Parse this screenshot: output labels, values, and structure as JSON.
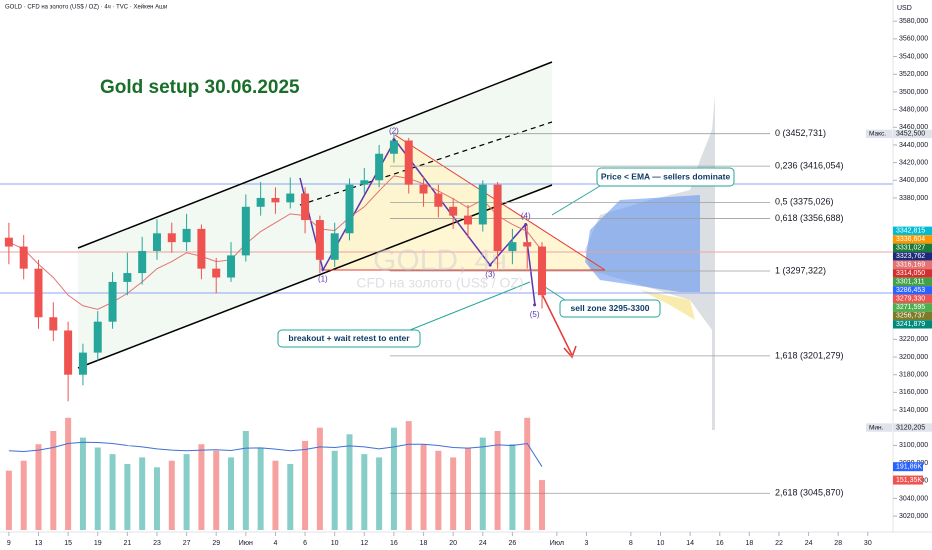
{
  "chart_data": {
    "type": "candlestick",
    "header": "GOLD · CFD на золото (US$ / OZ) · 4ч · TVC · Хейкен Аши",
    "title": "Gold setup 30.06.2025",
    "currency": "USD",
    "watermark": "GOLD, 4ч",
    "watermark_sub": "CFD на золото (US$ / OZ)",
    "up_color": "#26a69a",
    "down_color": "#ef5350",
    "xlim": [
      -0.6,
      59.7
    ],
    "ylim": [
      3002,
      3604
    ],
    "xticks": [
      {
        "value": 0,
        "label": "9"
      },
      {
        "value": 2,
        "label": "13"
      },
      {
        "value": 4,
        "label": "15"
      },
      {
        "value": 6,
        "label": "19"
      },
      {
        "value": 8,
        "label": "21"
      },
      {
        "value": 10,
        "label": "23"
      },
      {
        "value": 12,
        "label": "27"
      },
      {
        "value": 14,
        "label": "29"
      },
      {
        "value": 16,
        "label": "Июн"
      },
      {
        "value": 18,
        "label": "4"
      },
      {
        "value": 20,
        "label": "6"
      },
      {
        "value": 22,
        "label": "10"
      },
      {
        "value": 24,
        "label": "12"
      },
      {
        "value": 26,
        "label": "16"
      },
      {
        "value": 28,
        "label": "18"
      },
      {
        "value": 30,
        "label": "20"
      },
      {
        "value": 32,
        "label": "24"
      },
      {
        "value": 34,
        "label": "26"
      },
      {
        "value": 37,
        "label": "Июл"
      },
      {
        "value": 39,
        "label": "3"
      },
      {
        "value": 42,
        "label": "8"
      },
      {
        "value": 44,
        "label": "10"
      },
      {
        "value": 46,
        "label": "14"
      },
      {
        "value": 48,
        "label": "16"
      },
      {
        "value": 50,
        "label": "18"
      },
      {
        "value": 52,
        "label": "22"
      },
      {
        "value": 54,
        "label": "24"
      },
      {
        "value": 56,
        "label": "28"
      },
      {
        "value": 58,
        "label": "30"
      }
    ],
    "yticks": [
      {
        "value": 3020,
        "label": "3020,000"
      },
      {
        "value": 3040,
        "label": "3040,000"
      },
      {
        "value": 3060,
        "label": "3060,000"
      },
      {
        "value": 3080,
        "label": "3080,000"
      },
      {
        "value": 3100,
        "label": "3100,000"
      },
      {
        "value": 3140,
        "label": "3140,000"
      },
      {
        "value": 3160,
        "label": "3160,000"
      },
      {
        "value": 3180,
        "label": "3180,000"
      },
      {
        "value": 3200,
        "label": "3200,000"
      },
      {
        "value": 3220,
        "label": "3220,000"
      },
      {
        "value": 3380,
        "label": "3380,000"
      },
      {
        "value": 3400,
        "label": "3400,000"
      },
      {
        "value": 3420,
        "label": "3420,000"
      },
      {
        "value": 3440,
        "label": "3440,000"
      },
      {
        "value": 3460,
        "label": "3460,000"
      },
      {
        "value": 3480,
        "label": "3480,000"
      },
      {
        "value": 3500,
        "label": "3500,000"
      },
      {
        "value": 3520,
        "label": "3520,000"
      },
      {
        "value": 3540,
        "label": "3540,000"
      },
      {
        "value": 3560,
        "label": "3560,000"
      },
      {
        "value": 3580,
        "label": "3580,000"
      }
    ],
    "x": [
      0,
      1,
      2,
      3,
      4,
      5,
      6,
      7,
      8,
      9,
      10,
      11,
      12,
      13,
      14,
      15,
      16,
      17,
      18,
      19,
      20,
      21,
      22,
      23,
      24,
      25,
      26,
      27,
      28,
      29,
      30,
      31,
      32,
      33,
      34,
      35,
      36
    ],
    "open": [
      3335,
      3325,
      3300,
      3245,
      3230,
      3180,
      3205,
      3240,
      3285,
      3295,
      3320,
      3340,
      3330,
      3345,
      3300,
      3290,
      3315,
      3370,
      3380,
      3375,
      3385,
      3355,
      3310,
      3340,
      3395,
      3400,
      3430,
      3445,
      3395,
      3385,
      3370,
      3360,
      3350,
      3395,
      3320,
      3330,
      3325
    ],
    "high": [
      3352,
      3338,
      3310,
      3262,
      3240,
      3215,
      3252,
      3296,
      3318,
      3336,
      3356,
      3352,
      3362,
      3350,
      3312,
      3330,
      3384,
      3398,
      3392,
      3403,
      3392,
      3360,
      3352,
      3402,
      3414,
      3440,
      3452,
      3448,
      3405,
      3395,
      3380,
      3372,
      3400,
      3398,
      3345,
      3350,
      3330
    ],
    "low": [
      3305,
      3288,
      3232,
      3218,
      3150,
      3168,
      3196,
      3232,
      3270,
      3282,
      3310,
      3318,
      3320,
      3288,
      3272,
      3285,
      3308,
      3360,
      3362,
      3368,
      3340,
      3295,
      3302,
      3332,
      3385,
      3392,
      3420,
      3385,
      3370,
      3358,
      3345,
      3335,
      3342,
      3300,
      3305,
      3300,
      3255
    ],
    "close": [
      3325,
      3300,
      3245,
      3230,
      3180,
      3205,
      3240,
      3285,
      3295,
      3320,
      3340,
      3330,
      3345,
      3300,
      3290,
      3315,
      3370,
      3380,
      3375,
      3385,
      3355,
      3310,
      3340,
      3395,
      3400,
      3430,
      3445,
      3395,
      3385,
      3370,
      3360,
      3350,
      3395,
      3320,
      3330,
      3325,
      3270
    ],
    "ema": {
      "color": "#e57373",
      "values": [
        3330,
        3322,
        3305,
        3290,
        3270,
        3258,
        3254,
        3262,
        3272,
        3285,
        3300,
        3308,
        3318,
        3314,
        3308,
        3310,
        3328,
        3342,
        3352,
        3362,
        3360,
        3345,
        3343,
        3358,
        3370,
        3388,
        3405,
        3402,
        3396,
        3388,
        3379,
        3369,
        3378,
        3360,
        3350,
        3342,
        3320
      ]
    },
    "volume": {
      "values": [
        180,
        210,
        260,
        300,
        340,
        280,
        250,
        230,
        200,
        220,
        190,
        210,
        230,
        260,
        240,
        220,
        300,
        250,
        210,
        200,
        270,
        310,
        240,
        290,
        230,
        220,
        310,
        330,
        260,
        240,
        220,
        250,
        280,
        300,
        260,
        340,
        151.35
      ]
    },
    "volume_ma": {
      "color": "#3f6fd8",
      "values": [
        240,
        238,
        242,
        250,
        262,
        266,
        265,
        262,
        256,
        252,
        246,
        242,
        240,
        242,
        243,
        241,
        248,
        249,
        245,
        240,
        244,
        252,
        250,
        255,
        252,
        246,
        252,
        260,
        260,
        256,
        250,
        248,
        252,
        258,
        256,
        262,
        191.86
      ]
    },
    "volume_tags": [
      {
        "value": 191.86,
        "label": "191,86K",
        "color": "#2962ff"
      },
      {
        "value": 151.35,
        "label": "151,35K",
        "color": "#ef5350"
      }
    ],
    "price_tags": [
      {
        "value": 3452.5,
        "label": "3452,500",
        "tag": "Макс.",
        "color": "#e0e3eb"
      },
      {
        "value": 3342.815,
        "label": "3342,815",
        "color": "#00bcd4"
      },
      {
        "value": 3336.604,
        "label": "3336,604",
        "color": "#ff9800"
      },
      {
        "value": 3331.027,
        "label": "3331,027",
        "color": "#1b7a3a"
      },
      {
        "value": 3323.762,
        "label": "3323,762",
        "color": "#1e2a78"
      },
      {
        "value": 3316.169,
        "label": "3316,169",
        "color": "#e57373"
      },
      {
        "value": 3314.05,
        "label": "3314,050",
        "color": "#d32f2f"
      },
      {
        "value": 3301.311,
        "label": "3301,311",
        "color": "#43a047"
      },
      {
        "value": 3286.453,
        "label": "3286,453",
        "color": "#2962ff"
      },
      {
        "value": 3279.33,
        "label": "3279,330",
        "color": "#ef5350"
      },
      {
        "value": 3271.595,
        "label": "3271,595",
        "color": "#4caf50"
      },
      {
        "value": 3256.737,
        "label": "3256,737",
        "color": "#7b7b2a"
      },
      {
        "value": 3241.879,
        "label": "3241,879",
        "color": "#00897b"
      },
      {
        "value": 3120.205,
        "label": "3120,205",
        "tag": "Мин.",
        "color": "#e0e3eb"
      }
    ],
    "fib": [
      {
        "value": 3452.731,
        "label": "0 (3452,731)"
      },
      {
        "value": 3416.054,
        "label": "0,236 (3416,054)"
      },
      {
        "value": 3375.026,
        "label": "0,5 (3375,026)"
      },
      {
        "value": 3356.688,
        "label": "0,618 (3356,688)"
      },
      {
        "value": 3297.322,
        "label": "1 (3297,322)"
      },
      {
        "value": 3201.279,
        "label": "1,618 (3201,279)"
      },
      {
        "value": 3045.87,
        "label": "2,618 (3045,870)"
      }
    ],
    "waves": [
      {
        "label": "(1)",
        "x": 21.2,
        "y": 3299
      },
      {
        "label": "(2)",
        "x": 26,
        "y": 3446
      },
      {
        "label": "(3)",
        "x": 32.5,
        "y": 3304
      },
      {
        "label": "(4)",
        "x": 34.9,
        "y": 3350
      },
      {
        "label": "(5)",
        "x": 35.5,
        "y": 3259
      }
    ],
    "notes": [
      "Price < EMA — sellers dominate",
      "sell zone 3295-3300",
      "breakout + wait retest to enter"
    ]
  }
}
